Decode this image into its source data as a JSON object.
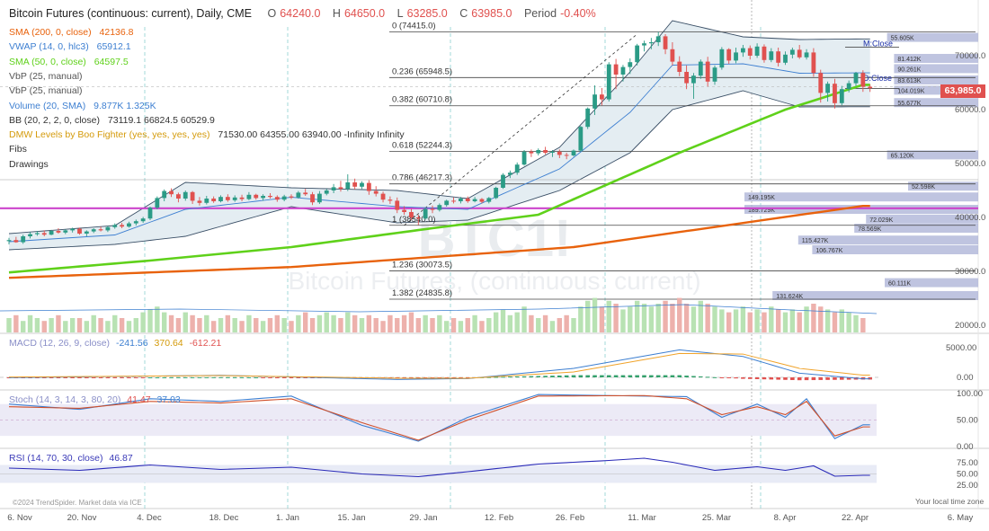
{
  "header": {
    "title": "Bitcoin Futures (continuous: current), Daily, CME",
    "o_label": "O",
    "o_val": "64240.0",
    "h_label": "H",
    "h_val": "64650.0",
    "l_label": "L",
    "l_val": "63285.0",
    "c_label": "C",
    "c_val": "63985.0",
    "period_label": "Period",
    "period_val": "-0.40%"
  },
  "indicators": [
    {
      "name": "SMA (200, 0, close)",
      "vals": "42136.8",
      "color": "#e8620c"
    },
    {
      "name": "VWAP (14, 0, hlc3)",
      "vals": "65912.1",
      "color": "#3d7fd1"
    },
    {
      "name": "SMA (50, 0, close)",
      "vals": "64597.5",
      "color": "#5fd11a"
    },
    {
      "name": "VbP (25, manual)",
      "vals": "",
      "color": "#555555"
    },
    {
      "name": "VbP (25, manual)",
      "vals": "",
      "color": "#555555"
    },
    {
      "name": "Volume (20, SMA)",
      "vals": "9.877K  1.325K",
      "color": "#3d7fd1"
    },
    {
      "name": "BB (20, 2, 2, 0, close)",
      "vals": "73119.1 66824.5 60529.9",
      "color": "#333333"
    },
    {
      "name": "DMW Levels by Boo Fighter (yes, yes, yes, yes)",
      "vals": "71530.00 64355.00 63940.00 -Infinity Infinity",
      "color": "#d49a0a"
    },
    {
      "name": "Fibs",
      "vals": "",
      "color": "#333333"
    },
    {
      "name": "Drawings",
      "vals": "",
      "color": "#333333"
    }
  ],
  "price_badge": "63,985.0",
  "watermark": {
    "symbol": "BTC1!",
    "name": "Bitcoin Futures, (continuous: current)"
  },
  "fibs": [
    {
      "label": "0 (74415.0)",
      "price": 74415
    },
    {
      "label": "0.236 (65948.5)",
      "price": 65948.5
    },
    {
      "label": "0.382 (60710.8)",
      "price": 60710.8
    },
    {
      "label": "0.618 (52244.3)",
      "price": 52244.3
    },
    {
      "label": "0.786 (46217.3)",
      "price": 46217.3
    },
    {
      "label": "1 (38540.0)",
      "price": 38540
    },
    {
      "label": "1.236 (30073.5)",
      "price": 30073.5
    },
    {
      "label": "1.382 (24835.8)",
      "price": 24835.8
    }
  ],
  "level_labels": {
    "m_close": "M:Close",
    "d_close": "D:Close"
  },
  "vbp": [
    {
      "price": 73400,
      "vol": 0.39,
      "label": "55.605K"
    },
    {
      "price": 69500,
      "vol": 0.36,
      "label": "81.412K"
    },
    {
      "price": 67600,
      "vol": 0.36,
      "label": "90.261K"
    },
    {
      "price": 65500,
      "vol": 0.36,
      "label": "83.613K"
    },
    {
      "price": 63600,
      "vol": 0.36,
      "label": "104.019K"
    },
    {
      "price": 61300,
      "vol": 0.36,
      "label": "55.677K"
    },
    {
      "price": 51600,
      "vol": 0.39,
      "label": "65.120K"
    },
    {
      "price": 45800,
      "vol": 0.3,
      "label": "52.598K"
    },
    {
      "price": 43800,
      "vol": 1.0,
      "label": "149.195K"
    },
    {
      "price": 41500,
      "vol": 1.0,
      "label": "189.729K"
    },
    {
      "price": 39700,
      "vol": 0.48,
      "label": "72.029K"
    },
    {
      "price": 38000,
      "vol": 0.53,
      "label": "78.569K"
    },
    {
      "price": 35800,
      "vol": 0.77,
      "label": "115.427K"
    },
    {
      "price": 34000,
      "vol": 0.71,
      "label": "106.767K"
    },
    {
      "price": 27900,
      "vol": 0.4,
      "label": "60.111K"
    },
    {
      "price": 25500,
      "vol": 0.88,
      "label": "131.624K"
    }
  ],
  "x_axis": [
    "6. Nov",
    "20. Nov",
    "4. Dec",
    "18. Dec",
    "1. Jan",
    "15. Jan",
    "29. Jan",
    "12. Feb",
    "26. Feb",
    "11. Mar",
    "25. Mar",
    "8. Apr",
    "22. Apr",
    "6. May"
  ],
  "y_axis_price": [
    "70000.0",
    "60000.0",
    "50000.0",
    "40000.0",
    "30000.0",
    "20000.0"
  ],
  "macd": {
    "title": "MACD (12, 26, 9, close)",
    "v1": "-241.56",
    "v2": "370.64",
    "v3": "-612.21",
    "axis": [
      "5000.00",
      "0.00"
    ]
  },
  "stoch": {
    "title": "Stoch (14, 3, 14, 3, 80, 20)",
    "v1": "41.47",
    "v2": "37.03",
    "axis": [
      "100.00",
      "50.00",
      "0.00"
    ]
  },
  "rsi": {
    "title": "RSI (14, 70, 30, close)",
    "v1": "46.87",
    "axis": [
      "75.00",
      "50.00",
      "25.00"
    ]
  },
  "copyright": "©2024 TrendSpider. Market data via ICE",
  "timezone": "Your local time zone",
  "colors": {
    "up": "#2b9b86",
    "down": "#e0514f",
    "sma200": "#e8620c",
    "sma50": "#5fd11a",
    "vwap": "#3d7fd1",
    "magenta": "#cc44cc",
    "vbp": "#aab0d6"
  },
  "chart_data": {
    "type": "candlestick",
    "title": "Bitcoin Futures (continuous: current), Daily, CME",
    "x_start": "2023-11-06",
    "x_end": "2024-05-06",
    "ylim": [
      18000,
      78000
    ],
    "candles": [
      [
        35600,
        36200,
        35000,
        35800
      ],
      [
        35800,
        36400,
        35300,
        35400
      ],
      [
        35400,
        36800,
        35100,
        36500
      ],
      [
        36500,
        37300,
        36100,
        36900
      ],
      [
        36900,
        37500,
        36600,
        37100
      ],
      [
        37100,
        37600,
        36500,
        36800
      ],
      [
        36800,
        37700,
        36700,
        37500
      ],
      [
        37500,
        38000,
        37000,
        37200
      ],
      [
        37200,
        37800,
        36900,
        37600
      ],
      [
        37600,
        38100,
        37200,
        37900
      ],
      [
        37900,
        38100,
        36800,
        37000
      ],
      [
        37000,
        37600,
        36500,
        37400
      ],
      [
        37400,
        38000,
        37100,
        37800
      ],
      [
        37800,
        38300,
        37400,
        37600
      ],
      [
        37600,
        38400,
        37300,
        38200
      ],
      [
        38200,
        38900,
        37900,
        38600
      ],
      [
        38600,
        39000,
        38000,
        38300
      ],
      [
        38300,
        39200,
        38100,
        38900
      ],
      [
        38900,
        39600,
        38500,
        39300
      ],
      [
        39300,
        40100,
        39000,
        39800
      ],
      [
        39800,
        42000,
        39500,
        41800
      ],
      [
        41800,
        43900,
        41500,
        43600
      ],
      [
        43600,
        45200,
        43000,
        44900
      ],
      [
        44900,
        45400,
        43800,
        44300
      ],
      [
        44300,
        44600,
        42800,
        43500
      ],
      [
        43500,
        45000,
        43100,
        44700
      ],
      [
        44700,
        44900,
        42500,
        43100
      ],
      [
        43100,
        43800,
        42200,
        42700
      ],
      [
        42700,
        44000,
        42400,
        43500
      ],
      [
        43500,
        43900,
        42700,
        43000
      ],
      [
        43000,
        44100,
        42800,
        43800
      ],
      [
        43800,
        44300,
        42900,
        43200
      ],
      [
        43200,
        44100,
        42900,
        43700
      ],
      [
        43700,
        44200,
        43000,
        43400
      ],
      [
        43400,
        44700,
        43200,
        44200
      ],
      [
        44200,
        44400,
        43300,
        43600
      ],
      [
        43600,
        44300,
        43100,
        44000
      ],
      [
        44000,
        44500,
        43500,
        43800
      ],
      [
        43800,
        44100,
        42900,
        43300
      ],
      [
        43300,
        44200,
        43000,
        43900
      ],
      [
        43900,
        44300,
        43400,
        43700
      ],
      [
        43700,
        44900,
        43500,
        44600
      ],
      [
        44600,
        45300,
        44000,
        44300
      ],
      [
        44300,
        44700,
        42300,
        42800
      ],
      [
        42800,
        44900,
        42500,
        44400
      ],
      [
        44400,
        45300,
        44100,
        45000
      ],
      [
        45000,
        46200,
        44500,
        45600
      ],
      [
        45600,
        46800,
        44800,
        45300
      ],
      [
        45300,
        48000,
        44900,
        46500
      ],
      [
        46500,
        47200,
        45200,
        45700
      ],
      [
        45700,
        46700,
        45300,
        46400
      ],
      [
        46400,
        46900,
        44200,
        44900
      ],
      [
        44900,
        45800,
        43900,
        44400
      ],
      [
        44400,
        44800,
        42800,
        43300
      ],
      [
        43300,
        43900,
        42500,
        43100
      ],
      [
        43100,
        43700,
        40800,
        41400
      ],
      [
        41400,
        42100,
        40500,
        41000
      ],
      [
        41000,
        41600,
        39500,
        40000
      ],
      [
        40000,
        40500,
        38600,
        39800
      ],
      [
        39800,
        41900,
        39600,
        41600
      ],
      [
        41600,
        42200,
        40800,
        41400
      ],
      [
        41400,
        42600,
        41100,
        42300
      ],
      [
        42300,
        43300,
        42000,
        43100
      ],
      [
        43100,
        43700,
        42600,
        43000
      ],
      [
        43000,
        43800,
        42600,
        43500
      ],
      [
        43500,
        43900,
        42700,
        43000
      ],
      [
        43000,
        43800,
        42800,
        43400
      ],
      [
        43400,
        43600,
        42600,
        42900
      ],
      [
        42900,
        43800,
        42600,
        43600
      ],
      [
        43600,
        45700,
        43400,
        45500
      ],
      [
        45500,
        48200,
        45300,
        47900
      ],
      [
        47900,
        48700,
        47300,
        48300
      ],
      [
        48300,
        50200,
        47900,
        49800
      ],
      [
        49800,
        52500,
        49600,
        52200
      ],
      [
        52200,
        52600,
        51200,
        51900
      ],
      [
        51900,
        52800,
        51500,
        52500
      ],
      [
        52500,
        53100,
        51700,
        52000
      ],
      [
        52000,
        52500,
        51200,
        52200
      ],
      [
        52200,
        52600,
        51000,
        51600
      ],
      [
        51600,
        52000,
        50800,
        51500
      ],
      [
        51500,
        52600,
        51300,
        52400
      ],
      [
        52400,
        57000,
        52200,
        56800
      ],
      [
        56800,
        60400,
        56400,
        60200
      ],
      [
        60200,
        64500,
        59000,
        62800
      ],
      [
        62800,
        64000,
        60800,
        61900
      ],
      [
        61900,
        68800,
        61500,
        68400
      ],
      [
        68400,
        69400,
        63800,
        66500
      ],
      [
        66500,
        68300,
        65200,
        67900
      ],
      [
        67900,
        69500,
        66600,
        68800
      ],
      [
        68800,
        72200,
        68200,
        71900
      ],
      [
        71900,
        72800,
        70800,
        72300
      ],
      [
        72300,
        73300,
        71200,
        72500
      ],
      [
        72500,
        74400,
        71800,
        73600
      ],
      [
        73600,
        74000,
        70300,
        71200
      ],
      [
        71200,
        72500,
        68200,
        68900
      ],
      [
        68900,
        69900,
        66200,
        67000
      ],
      [
        67000,
        68200,
        63800,
        64900
      ],
      [
        64900,
        66800,
        62000,
        66300
      ],
      [
        66300,
        69300,
        65700,
        68900
      ],
      [
        68900,
        69800,
        64300,
        65200
      ],
      [
        65200,
        68200,
        64600,
        67800
      ],
      [
        67800,
        71600,
        67400,
        71200
      ],
      [
        71200,
        71400,
        68500,
        69100
      ],
      [
        69100,
        71500,
        68600,
        70600
      ],
      [
        70600,
        72000,
        69800,
        71400
      ],
      [
        71400,
        71900,
        69300,
        70000
      ],
      [
        70000,
        72300,
        69600,
        71700
      ],
      [
        71700,
        72100,
        68700,
        69200
      ],
      [
        69200,
        71400,
        68800,
        70800
      ],
      [
        70800,
        71500,
        68000,
        68700
      ],
      [
        68700,
        70800,
        68300,
        70200
      ],
      [
        70200,
        71500,
        69500,
        71100
      ],
      [
        71100,
        72000,
        69400,
        69700
      ],
      [
        69700,
        71200,
        69300,
        70600
      ],
      [
        70600,
        71400,
        66100,
        66800
      ],
      [
        66800,
        67400,
        61300,
        63100
      ],
      [
        63100,
        65200,
        61500,
        64800
      ],
      [
        64800,
        65700,
        60200,
        61200
      ],
      [
        61200,
        64400,
        60800,
        63800
      ],
      [
        63800,
        65400,
        63200,
        64900
      ],
      [
        64900,
        67000,
        64400,
        66800
      ],
      [
        66800,
        67300,
        63300,
        64240
      ],
      [
        64240,
        64650,
        63285,
        63985
      ]
    ],
    "volume": [
      5,
      6,
      4,
      6,
      5,
      4,
      5,
      6,
      4,
      5,
      5,
      4,
      6,
      5,
      4,
      6,
      5,
      4,
      5,
      7,
      8,
      9,
      7,
      6,
      5,
      7,
      6,
      5,
      6,
      4,
      5,
      6,
      5,
      4,
      6,
      5,
      4,
      5,
      6,
      5,
      4,
      6,
      7,
      5,
      6,
      7,
      6,
      5,
      7,
      6,
      5,
      6,
      5,
      4,
      6,
      5,
      6,
      7,
      5,
      6,
      5,
      6,
      4,
      5,
      4,
      5,
      6,
      4,
      5,
      7,
      8,
      6,
      7,
      9,
      6,
      5,
      6,
      4,
      5,
      6,
      5,
      9,
      11,
      12,
      9,
      11,
      10,
      8,
      9,
      11,
      10,
      9,
      10,
      11,
      10,
      12,
      10,
      9,
      11,
      10,
      9,
      8,
      7,
      8,
      9,
      7,
      8,
      7,
      9,
      8,
      7,
      8,
      7,
      9,
      10,
      9,
      8,
      7,
      8,
      7,
      6,
      5
    ],
    "sma200": [
      [
        0,
        28800
      ],
      [
        40,
        30800
      ],
      [
        80,
        34500
      ],
      [
        121,
        42137
      ]
    ],
    "sma50": [
      [
        0,
        29800
      ],
      [
        20,
        32000
      ],
      [
        40,
        34500
      ],
      [
        60,
        38000
      ],
      [
        75,
        40500
      ],
      [
        95,
        52000
      ],
      [
        110,
        60000
      ],
      [
        121,
        64597
      ]
    ],
    "bb_upper": [
      [
        0,
        37000
      ],
      [
        15,
        38500
      ],
      [
        25,
        46500
      ],
      [
        40,
        45500
      ],
      [
        55,
        45000
      ],
      [
        65,
        43500
      ],
      [
        78,
        53000
      ],
      [
        88,
        67000
      ],
      [
        94,
        76500
      ],
      [
        104,
        73500
      ],
      [
        112,
        73000
      ],
      [
        121,
        73119
      ]
    ],
    "bb_lower": [
      [
        0,
        34000
      ],
      [
        15,
        35000
      ],
      [
        25,
        36500
      ],
      [
        40,
        42000
      ],
      [
        55,
        39000
      ],
      [
        65,
        39500
      ],
      [
        78,
        45000
      ],
      [
        88,
        52000
      ],
      [
        94,
        60000
      ],
      [
        104,
        63500
      ],
      [
        112,
        60500
      ],
      [
        121,
        60530
      ]
    ],
    "macd_line": [
      [
        0,
        -50
      ],
      [
        30,
        350
      ],
      [
        55,
        -350
      ],
      [
        65,
        -200
      ],
      [
        80,
        1500
      ],
      [
        95,
        4600
      ],
      [
        104,
        3500
      ],
      [
        112,
        700
      ],
      [
        121,
        -242
      ]
    ],
    "macd_signal": [
      [
        0,
        50
      ],
      [
        30,
        300
      ],
      [
        55,
        -150
      ],
      [
        65,
        -150
      ],
      [
        80,
        900
      ],
      [
        95,
        4000
      ],
      [
        104,
        3900
      ],
      [
        112,
        1500
      ],
      [
        121,
        371
      ]
    ],
    "stoch_k": [
      [
        0,
        80
      ],
      [
        10,
        70
      ],
      [
        20,
        90
      ],
      [
        30,
        85
      ],
      [
        40,
        95
      ],
      [
        50,
        40
      ],
      [
        58,
        10
      ],
      [
        65,
        55
      ],
      [
        75,
        98
      ],
      [
        90,
        95
      ],
      [
        96,
        94
      ],
      [
        101,
        55
      ],
      [
        106,
        80
      ],
      [
        110,
        55
      ],
      [
        113,
        90
      ],
      [
        117,
        15
      ],
      [
        121,
        41
      ]
    ],
    "stoch_d": [
      [
        0,
        75
      ],
      [
        10,
        72
      ],
      [
        20,
        85
      ],
      [
        30,
        82
      ],
      [
        40,
        90
      ],
      [
        50,
        45
      ],
      [
        58,
        12
      ],
      [
        65,
        50
      ],
      [
        75,
        95
      ],
      [
        90,
        96
      ],
      [
        96,
        90
      ],
      [
        101,
        60
      ],
      [
        106,
        75
      ],
      [
        110,
        60
      ],
      [
        113,
        85
      ],
      [
        117,
        20
      ],
      [
        121,
        37
      ]
    ],
    "rsi": [
      [
        0,
        63
      ],
      [
        10,
        58
      ],
      [
        20,
        70
      ],
      [
        30,
        60
      ],
      [
        40,
        65
      ],
      [
        50,
        50
      ],
      [
        58,
        44
      ],
      [
        65,
        55
      ],
      [
        75,
        72
      ],
      [
        85,
        80
      ],
      [
        90,
        85
      ],
      [
        94,
        76
      ],
      [
        100,
        58
      ],
      [
        106,
        66
      ],
      [
        110,
        58
      ],
      [
        114,
        68
      ],
      [
        117,
        45
      ],
      [
        121,
        47
      ]
    ]
  }
}
